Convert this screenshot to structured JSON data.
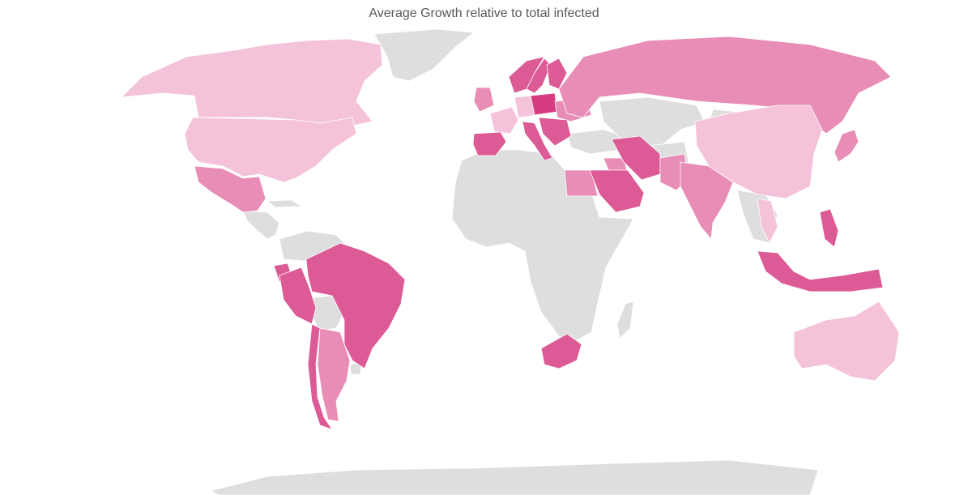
{
  "chart": {
    "title": "Average Growth relative to total infected"
  },
  "colors": {
    "no_data": "#dedede",
    "level_1": "#f5c3d9",
    "level_2": "#e88db5",
    "level_3": "#dc5a96",
    "level_4": "#d63d80"
  },
  "chart_data": {
    "type": "choropleth",
    "title": "Average Growth relative to total infected",
    "legend": "none",
    "levels": [
      {
        "level": 1,
        "color": "#f5c3d9"
      },
      {
        "level": 2,
        "color": "#e88db5"
      },
      {
        "level": 3,
        "color": "#dc5a96"
      },
      {
        "level": 4,
        "color": "#d63d80"
      }
    ],
    "regions": [
      {
        "name": "Canada",
        "level": 1
      },
      {
        "name": "United States",
        "level": 1
      },
      {
        "name": "China",
        "level": 1
      },
      {
        "name": "Australia",
        "level": 1
      },
      {
        "name": "Thailand",
        "level": 1
      },
      {
        "name": "Germany",
        "level": 1
      },
      {
        "name": "France",
        "level": 1
      },
      {
        "name": "Mexico",
        "level": 2
      },
      {
        "name": "Russia",
        "level": 2
      },
      {
        "name": "India",
        "level": 2
      },
      {
        "name": "Egypt",
        "level": 2
      },
      {
        "name": "Argentina",
        "level": 2
      },
      {
        "name": "Japan",
        "level": 2
      },
      {
        "name": "Pakistan",
        "level": 2
      },
      {
        "name": "Iraq",
        "level": 2
      },
      {
        "name": "Ukraine",
        "level": 2
      },
      {
        "name": "Brazil",
        "level": 3
      },
      {
        "name": "Peru",
        "level": 3
      },
      {
        "name": "Chile",
        "level": 3
      },
      {
        "name": "Ecuador",
        "level": 3
      },
      {
        "name": "Spain",
        "level": 3
      },
      {
        "name": "Iran",
        "level": 3
      },
      {
        "name": "Saudi Arabia",
        "level": 3
      },
      {
        "name": "South Africa",
        "level": 3
      },
      {
        "name": "Indonesia",
        "level": 3
      },
      {
        "name": "Philippines",
        "level": 3
      },
      {
        "name": "Sweden",
        "level": 3
      },
      {
        "name": "Norway",
        "level": 3
      },
      {
        "name": "Finland",
        "level": 3
      },
      {
        "name": "Italy",
        "level": 3
      },
      {
        "name": "Poland",
        "level": 4
      }
    ]
  }
}
